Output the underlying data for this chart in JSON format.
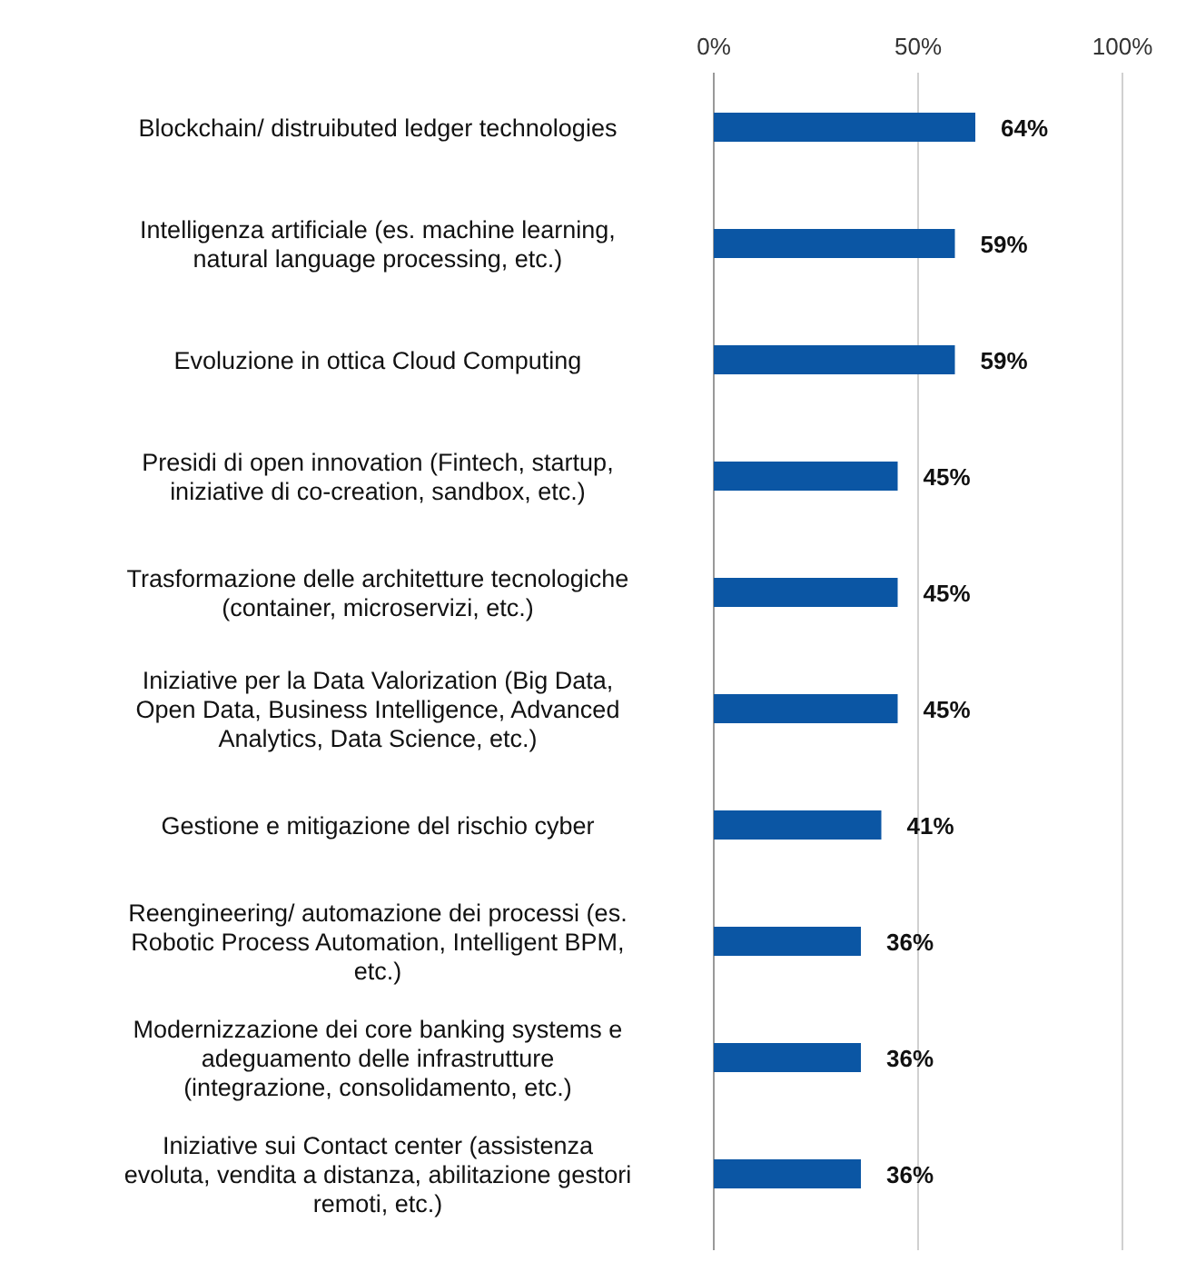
{
  "chart_data": {
    "type": "bar",
    "orientation": "horizontal",
    "categories": [
      "Blockchain/ distruibuted ledger technologies",
      "Intelligenza artificiale (es. machine learning,\nnatural language processing, etc.)",
      "Evoluzione in ottica Cloud Computing",
      "Presidi di open innovation (Fintech, startup,\niniziative di co-creation, sandbox, etc.)",
      "Trasformazione delle architetture tecnologiche\n(container, microservizi, etc.)",
      "Iniziative per la Data Valorization (Big Data,\nOpen Data, Business Intelligence, Advanced\nAnalytics, Data Science, etc.)",
      "Gestione e mitigazione del rischio cyber",
      "Reengineering/ automazione dei processi (es.\nRobotic Process Automation, Intelligent BPM,\netc.)",
      "Modernizzazione dei core banking systems e\nadeguamento delle infrastrutture\n(integrazione, consolidamento, etc.)",
      "Iniziative sui Contact center (assistenza\nevoluta, vendita a distanza, abilitazione gestori\nremoti, etc.)"
    ],
    "values": [
      64,
      59,
      59,
      45,
      45,
      45,
      41,
      36,
      36,
      36
    ],
    "value_labels": [
      "64%",
      "59%",
      "59%",
      "45%",
      "45%",
      "45%",
      "41%",
      "36%",
      "36%",
      "36%"
    ],
    "color": "#0b56a4",
    "xlim": [
      0,
      100
    ],
    "xticks": [
      {
        "value": 0,
        "label": "0%"
      },
      {
        "value": 50,
        "label": "50%"
      },
      {
        "value": 100,
        "label": "100%"
      }
    ],
    "grid": "x"
  }
}
